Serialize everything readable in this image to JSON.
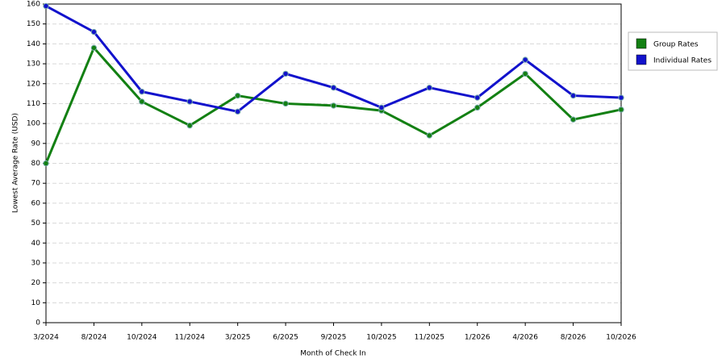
{
  "chart_data": {
    "type": "line",
    "x_label": "Month of Check In",
    "y_label": "Lowest Average Rate (USD)",
    "categories": [
      "3/2024",
      "8/2024",
      "10/2024",
      "11/2024",
      "3/2025",
      "6/2025",
      "9/2025",
      "10/2025",
      "11/2025",
      "1/2026",
      "4/2026",
      "8/2026",
      "10/2026"
    ],
    "series": [
      {
        "name": "Group Rates",
        "color": "#138013",
        "values": [
          80,
          138,
          111,
          99,
          114,
          110,
          109,
          106.5,
          94,
          108,
          125,
          102,
          107
        ]
      },
      {
        "name": "Individual Rates",
        "color": "#1212cc",
        "values": [
          159,
          146,
          116,
          111,
          106,
          125,
          118,
          108,
          118,
          113,
          132,
          114,
          113
        ]
      }
    ],
    "ylim": [
      0,
      160
    ],
    "yticks": [
      0,
      10,
      20,
      30,
      40,
      50,
      60,
      70,
      80,
      90,
      100,
      110,
      120,
      130,
      140,
      150,
      160
    ],
    "grid": true,
    "legend": "right"
  }
}
